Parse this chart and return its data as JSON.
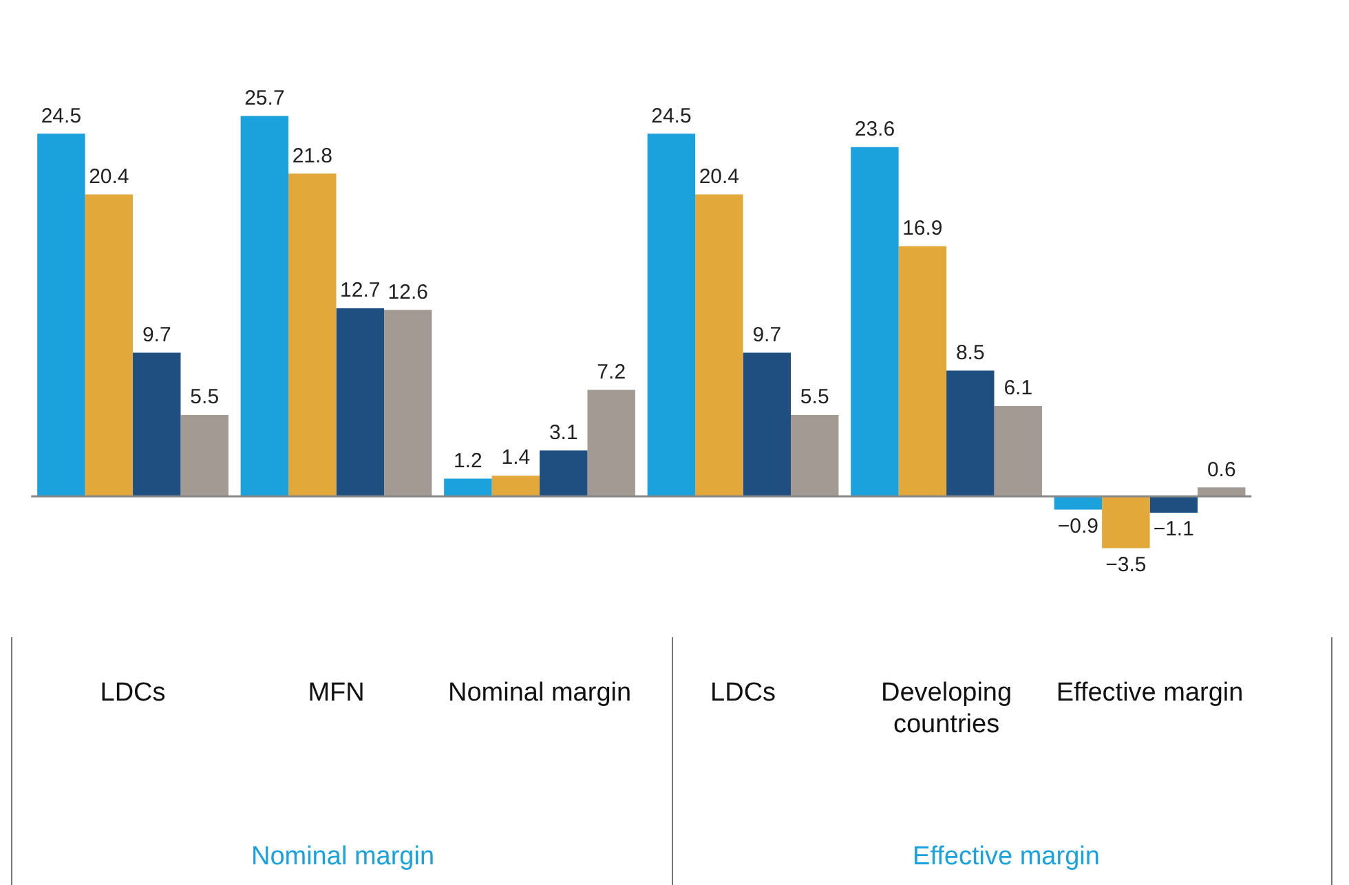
{
  "chart_data": {
    "type": "bar",
    "categories": [
      "LDCs",
      "MFN",
      "Nominal margin",
      "LDCs",
      "Developing countries",
      "Effective margin"
    ],
    "series": [
      {
        "color": "#1ba1dc",
        "values": [
          24.5,
          25.7,
          1.2,
          24.5,
          23.6,
          -0.9
        ]
      },
      {
        "color": "#e3a83a",
        "values": [
          20.4,
          21.8,
          1.4,
          20.4,
          16.9,
          -3.5
        ]
      },
      {
        "color": "#1f4e80",
        "values": [
          9.7,
          12.7,
          3.1,
          9.7,
          8.5,
          -1.1
        ]
      },
      {
        "color": "#a39a93",
        "values": [
          5.5,
          12.6,
          7.2,
          5.5,
          6.1,
          0.6
        ]
      }
    ],
    "annotations": [
      "Nominal margin",
      "Effective margin"
    ],
    "data_labels": true,
    "grid": false,
    "legend": false
  }
}
